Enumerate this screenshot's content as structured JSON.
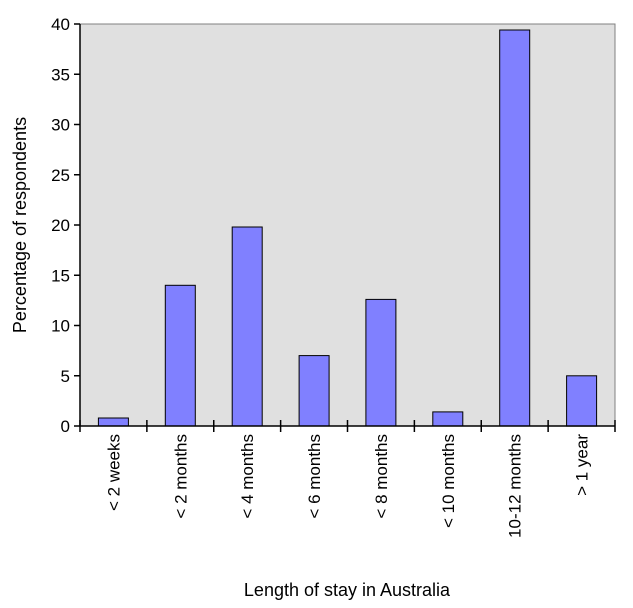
{
  "chart_data": {
    "type": "bar",
    "categories": [
      "< 2 weeks",
      "< 2 months",
      "< 4 months",
      "< 6 months",
      "< 8 months",
      "< 10 months",
      "10-12 months",
      "> 1 year"
    ],
    "values": [
      0.8,
      14.0,
      19.8,
      7.0,
      12.6,
      1.4,
      39.4,
      5.0
    ],
    "title": "",
    "xlabel": "Length of stay in Australia",
    "ylabel": "Percentage of respondents",
    "ylim": [
      0,
      40
    ],
    "yticks": [
      0,
      5,
      10,
      15,
      20,
      25,
      30,
      35,
      40
    ],
    "grid": false,
    "legend": "none",
    "colors": {
      "bar_fill": "#8080ff",
      "bar_stroke": "#000000",
      "plot_background": "#e0e0e0",
      "plot_border": "#808080",
      "axis": "#000000"
    }
  }
}
